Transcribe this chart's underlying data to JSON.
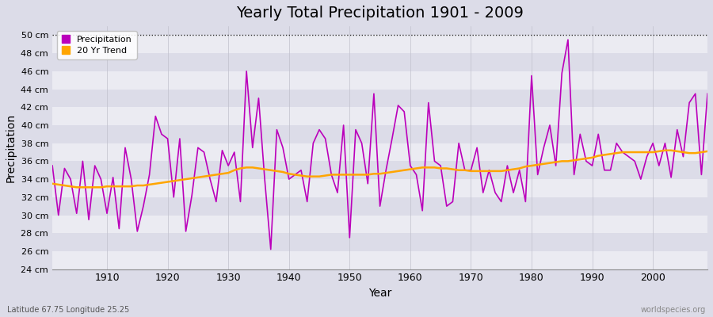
{
  "title": "Yearly Total Precipitation 1901 - 2009",
  "xlabel": "Year",
  "ylabel": "Precipitation",
  "subtitle_lat_lon": "Latitude 67.75 Longitude 25.25",
  "watermark": "worldspecies.org",
  "precip_color": "#bb00bb",
  "trend_color": "#ffa500",
  "bg_color": "#dcdce8",
  "plot_bg_color": "#dcdce8",
  "grid_color": "#c8c8d8",
  "dotted_line_y": 50,
  "ylim": [
    24,
    51
  ],
  "yticks": [
    24,
    26,
    28,
    30,
    32,
    34,
    36,
    38,
    40,
    42,
    44,
    46,
    48,
    50
  ],
  "xlim": [
    1901,
    2009
  ],
  "xticks": [
    1910,
    1920,
    1930,
    1940,
    1950,
    1960,
    1970,
    1980,
    1990,
    2000
  ],
  "years": [
    1901,
    1902,
    1903,
    1904,
    1905,
    1906,
    1907,
    1908,
    1909,
    1910,
    1911,
    1912,
    1913,
    1914,
    1915,
    1916,
    1917,
    1918,
    1919,
    1920,
    1921,
    1922,
    1923,
    1924,
    1925,
    1926,
    1927,
    1928,
    1929,
    1930,
    1931,
    1932,
    1933,
    1934,
    1935,
    1936,
    1937,
    1938,
    1939,
    1940,
    1941,
    1942,
    1943,
    1944,
    1945,
    1946,
    1947,
    1948,
    1949,
    1950,
    1951,
    1952,
    1953,
    1954,
    1955,
    1956,
    1957,
    1958,
    1959,
    1960,
    1961,
    1962,
    1963,
    1964,
    1965,
    1966,
    1967,
    1968,
    1969,
    1970,
    1971,
    1972,
    1973,
    1974,
    1975,
    1976,
    1977,
    1978,
    1979,
    1980,
    1981,
    1982,
    1983,
    1984,
    1985,
    1986,
    1987,
    1988,
    1989,
    1990,
    1991,
    1992,
    1993,
    1994,
    1995,
    1996,
    1997,
    1998,
    1999,
    2000,
    2001,
    2002,
    2003,
    2004,
    2005,
    2006,
    2007,
    2008,
    2009
  ],
  "precip": [
    35.5,
    30.0,
    35.2,
    34.0,
    30.2,
    36.0,
    29.5,
    35.5,
    34.0,
    30.2,
    34.2,
    28.5,
    37.5,
    34.0,
    28.2,
    31.0,
    34.5,
    41.0,
    39.0,
    38.5,
    32.0,
    38.5,
    28.2,
    32.2,
    37.5,
    37.0,
    34.0,
    31.5,
    37.2,
    35.5,
    37.0,
    31.5,
    46.0,
    37.5,
    43.0,
    34.0,
    26.2,
    39.5,
    37.5,
    34.0,
    34.5,
    35.0,
    31.5,
    38.0,
    39.5,
    38.5,
    34.5,
    32.5,
    40.0,
    27.5,
    39.5,
    38.0,
    33.5,
    43.5,
    31.0,
    35.0,
    38.5,
    42.2,
    41.5,
    35.5,
    34.5,
    30.5,
    42.5,
    36.0,
    35.5,
    31.0,
    31.5,
    38.0,
    35.0,
    35.0,
    37.5,
    32.5,
    35.0,
    32.5,
    31.5,
    35.5,
    32.5,
    35.0,
    31.5,
    45.5,
    34.5,
    37.5,
    40.0,
    35.5,
    45.8,
    49.5,
    34.5,
    39.0,
    36.0,
    35.5,
    39.0,
    35.0,
    35.0,
    38.0,
    37.0,
    36.5,
    36.0,
    34.0,
    36.5,
    38.0,
    35.5,
    38.0,
    34.2,
    39.5,
    36.5,
    42.5,
    43.5,
    34.5,
    43.5
  ],
  "trend": [
    33.5,
    33.4,
    33.3,
    33.2,
    33.1,
    33.1,
    33.1,
    33.1,
    33.1,
    33.2,
    33.2,
    33.2,
    33.2,
    33.2,
    33.3,
    33.3,
    33.4,
    33.5,
    33.6,
    33.7,
    33.8,
    33.9,
    34.0,
    34.1,
    34.2,
    34.3,
    34.4,
    34.5,
    34.6,
    34.7,
    35.0,
    35.2,
    35.3,
    35.3,
    35.2,
    35.1,
    35.0,
    34.9,
    34.8,
    34.6,
    34.5,
    34.4,
    34.3,
    34.3,
    34.3,
    34.4,
    34.5,
    34.5,
    34.5,
    34.5,
    34.5,
    34.5,
    34.5,
    34.6,
    34.6,
    34.7,
    34.8,
    34.9,
    35.0,
    35.1,
    35.2,
    35.3,
    35.3,
    35.3,
    35.2,
    35.2,
    35.1,
    35.0,
    35.0,
    34.9,
    34.9,
    34.9,
    34.9,
    34.9,
    34.9,
    35.0,
    35.1,
    35.2,
    35.4,
    35.5,
    35.6,
    35.7,
    35.8,
    35.9,
    36.0,
    36.0,
    36.1,
    36.2,
    36.3,
    36.4,
    36.6,
    36.7,
    36.8,
    36.9,
    37.0,
    37.0,
    37.0,
    37.0,
    37.0,
    37.0,
    37.1,
    37.2,
    37.2,
    37.1,
    37.0,
    36.9,
    36.9,
    37.0,
    37.1
  ]
}
